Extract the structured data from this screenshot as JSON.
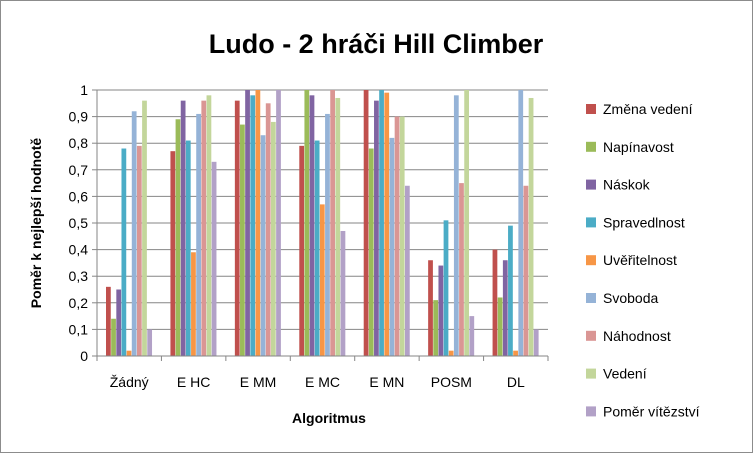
{
  "chart_data": {
    "type": "bar",
    "title": "Ludo - 2 hráči Hill Climber",
    "xlabel": "Algoritmus",
    "ylabel": "Poměr k nejlepší hodnotě",
    "ylim": [
      0,
      1
    ],
    "yticks": [
      "0",
      "0,1",
      "0,2",
      "0,3",
      "0,4",
      "0,5",
      "0,6",
      "0,7",
      "0,8",
      "0,9",
      "1"
    ],
    "grid": true,
    "legend_position": "right",
    "categories": [
      "Žádný",
      "E HC",
      "E MM",
      "E MC",
      "E MN",
      "POSM",
      "DL"
    ],
    "series": [
      {
        "name": "Změna vedení",
        "color": "#c0504d",
        "values": [
          0.26,
          0.77,
          0.96,
          0.79,
          1.0,
          0.36,
          0.4
        ]
      },
      {
        "name": "Napínavost",
        "color": "#9bbb59",
        "values": [
          0.14,
          0.89,
          0.87,
          1.0,
          0.78,
          0.21,
          0.22
        ]
      },
      {
        "name": "Náskok",
        "color": "#8064a2",
        "values": [
          0.25,
          0.96,
          1.0,
          0.98,
          0.96,
          0.34,
          0.36
        ]
      },
      {
        "name": "Spravedlnost",
        "color": "#4bacc6",
        "values": [
          0.78,
          0.81,
          0.98,
          0.81,
          1.0,
          0.51,
          0.49
        ]
      },
      {
        "name": "Uvěřitelnost",
        "color": "#f79646",
        "values": [
          0.02,
          0.39,
          1.0,
          0.57,
          0.99,
          0.02,
          0.02
        ]
      },
      {
        "name": "Svoboda",
        "color": "#95b3d7",
        "values": [
          0.92,
          0.91,
          0.83,
          0.91,
          0.82,
          0.98,
          1.0
        ]
      },
      {
        "name": "Náhodnost",
        "color": "#da9694",
        "values": [
          0.79,
          0.96,
          0.95,
          1.0,
          0.9,
          0.65,
          0.64
        ]
      },
      {
        "name": "Vedení",
        "color": "#c3d69b",
        "values": [
          0.96,
          0.98,
          0.88,
          0.97,
          0.9,
          1.0,
          0.97
        ]
      },
      {
        "name": "Poměr vítězství",
        "color": "#b2a1c7",
        "values": [
          0.1,
          0.73,
          1.0,
          0.47,
          0.64,
          0.15,
          0.1
        ]
      }
    ]
  }
}
